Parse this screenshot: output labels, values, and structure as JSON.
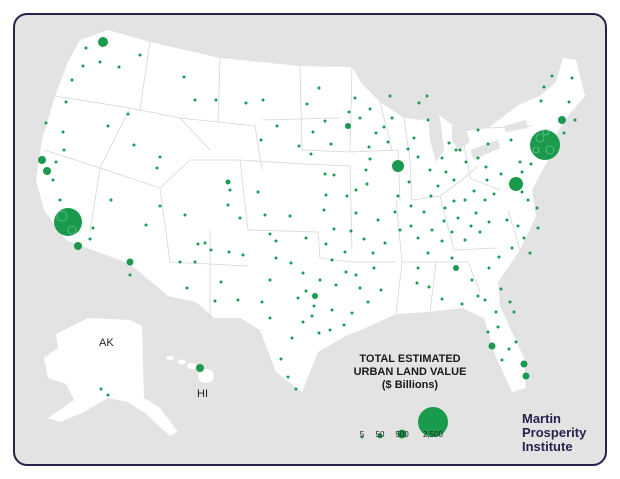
{
  "map": {
    "land_color": "#ffffff",
    "water_color": "#e3e3e3",
    "border_color": "#d8d8d8",
    "bubble_color": "#1a9a4d",
    "region_labels": {
      "alaska": "AK",
      "hawaii": "HI"
    }
  },
  "legend": {
    "title_line1": "TOTAL ESTIMATED",
    "title_line2": "URBAN LAND VALUE",
    "title_line3": "($ Billions)",
    "ticks": [
      "5",
      "50",
      "500",
      "2,500"
    ]
  },
  "brand": {
    "line1": "Martin",
    "line2": "Prosperity",
    "line3": "Institute",
    "color": "#2a1f4d"
  }
}
